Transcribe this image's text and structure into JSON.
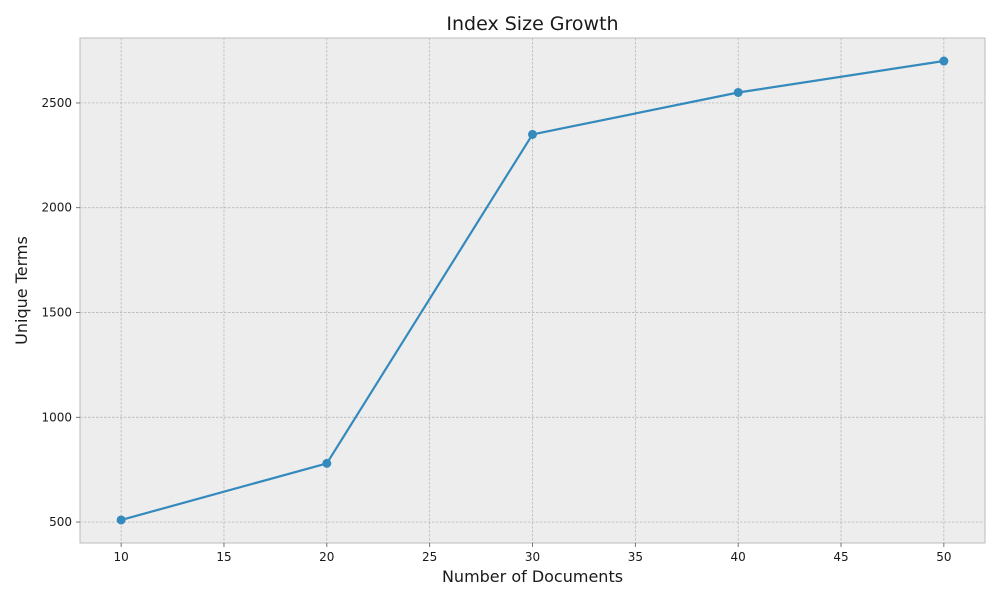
{
  "chart_data": {
    "type": "line",
    "title": "Index Size Growth",
    "xlabel": "Number of Documents",
    "ylabel": "Unique Terms",
    "x": [
      10,
      20,
      30,
      40,
      50
    ],
    "series": [
      {
        "values": [
          510,
          780,
          2350,
          2550,
          2700
        ]
      }
    ],
    "xlim": [
      8,
      52
    ],
    "ylim": [
      400,
      2810
    ],
    "xticks": [
      10,
      15,
      20,
      25,
      30,
      35,
      40,
      45,
      50
    ],
    "yticks": [
      500,
      1000,
      1500,
      2000,
      2500
    ],
    "grid": true,
    "legend": "none",
    "colors": {
      "line": "#348abd",
      "plot_background": "#ededed",
      "grid": "#b0b0b0",
      "frame": "#bcbcbc"
    }
  }
}
